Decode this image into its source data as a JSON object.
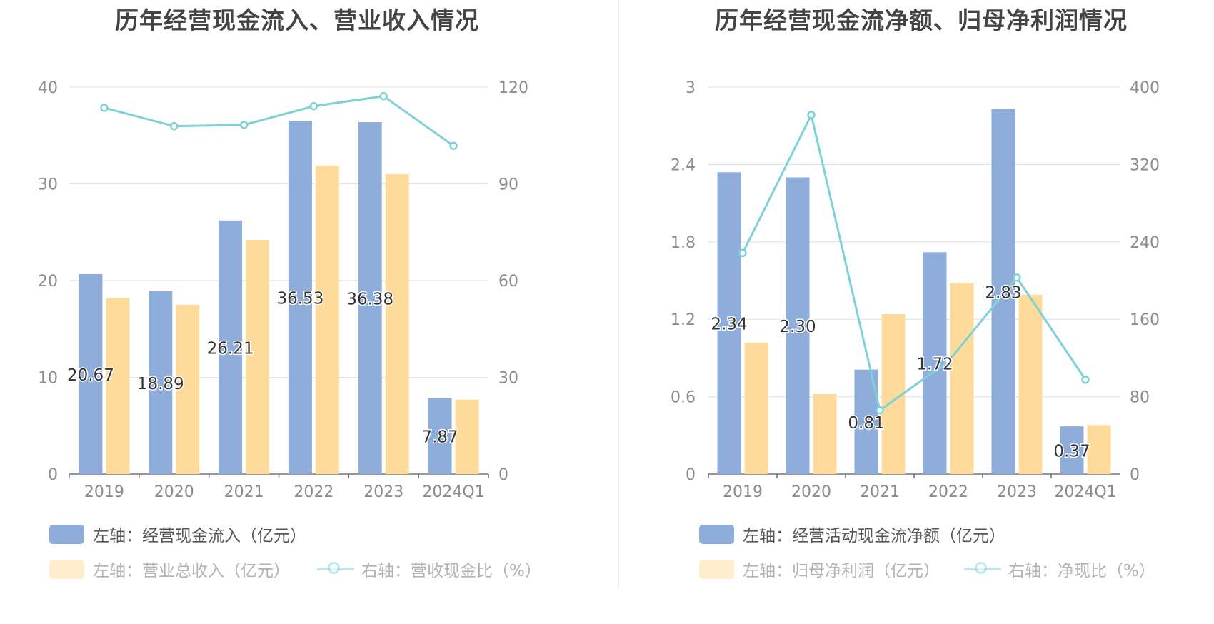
{
  "colors": {
    "bar_primary": "#8eadda",
    "bar_secondary": "#ffdb9b",
    "line": "#7ed2d7",
    "grid": "#dde3f0",
    "axis_text": "#8c8c8c",
    "title": "#444444",
    "legend_active": "#555555",
    "legend_dim": "#b2b2b2"
  },
  "left_chart": {
    "title": "历年经营现金流入、营业收入情况",
    "legend": {
      "item1": "左轴：经营现金流入（亿元）",
      "item2": "左轴：营业总收入（亿元）",
      "item3": "右轴：营收现金比（%）"
    }
  },
  "right_chart": {
    "title": "历年经营现金流净额、归母净利润情况",
    "legend": {
      "item1": "左轴：经营活动现金流净额（亿元）",
      "item2": "左轴：归母净利润（亿元）",
      "item3": "右轴：净现比（%）"
    }
  },
  "chart_data": [
    {
      "type": "bar",
      "title": "历年经营现金流入、营业收入情况",
      "categories": [
        "2019",
        "2020",
        "2021",
        "2022",
        "2023",
        "2024Q1"
      ],
      "left_axis": {
        "min": 0,
        "max": 40,
        "ticks": [
          "0",
          "10",
          "20",
          "30",
          "40"
        ]
      },
      "right_axis": {
        "min": 0,
        "max": 120,
        "ticks": [
          "0",
          "30",
          "60",
          "90",
          "120"
        ]
      },
      "series": [
        {
          "name": "左轴：经营现金流入（亿元）",
          "type": "bar",
          "axis": "left",
          "values": [
            20.67,
            18.89,
            26.21,
            36.53,
            36.38,
            7.87
          ],
          "labels": [
            "20.67",
            "18.89",
            "26.21",
            "36.53",
            "36.38",
            "7.87"
          ]
        },
        {
          "name": "左轴：营业总收入（亿元）",
          "type": "bar",
          "axis": "left",
          "values": [
            18.2,
            17.5,
            24.2,
            31.9,
            31.0,
            7.7
          ]
        },
        {
          "name": "右轴：营收现金比（%）",
          "type": "line",
          "axis": "right",
          "values": [
            113.6,
            107.9,
            108.3,
            114.1,
            117.2,
            101.8
          ]
        }
      ],
      "grid": true,
      "legend_position": "bottom-left"
    },
    {
      "type": "bar",
      "title": "历年经营现金流净额、归母净利润情况",
      "categories": [
        "2019",
        "2020",
        "2021",
        "2022",
        "2023",
        "2024Q1"
      ],
      "left_axis": {
        "min": 0,
        "max": 3,
        "ticks": [
          "0",
          "0.6",
          "1.2",
          "1.8",
          "2.4",
          "3"
        ]
      },
      "right_axis": {
        "min": 0,
        "max": 400,
        "ticks": [
          "0",
          "80",
          "160",
          "240",
          "320",
          "400"
        ]
      },
      "series": [
        {
          "name": "左轴：经营活动现金流净额（亿元）",
          "type": "bar",
          "axis": "left",
          "values": [
            2.34,
            2.3,
            0.81,
            1.72,
            2.83,
            0.37
          ],
          "labels": [
            "2.34",
            "2.30",
            "0.81",
            "1.72",
            "2.83",
            "0.37"
          ]
        },
        {
          "name": "左轴：归母净利润（亿元）",
          "type": "bar",
          "axis": "left",
          "values": [
            1.02,
            0.62,
            1.24,
            1.48,
            1.39,
            0.38
          ]
        },
        {
          "name": "右轴：净现比（%）",
          "type": "line",
          "axis": "right",
          "values": [
            228.5,
            371.3,
            66.0,
            116.5,
            203.0,
            97.6
          ]
        }
      ],
      "grid": true,
      "legend_position": "bottom-left"
    }
  ]
}
